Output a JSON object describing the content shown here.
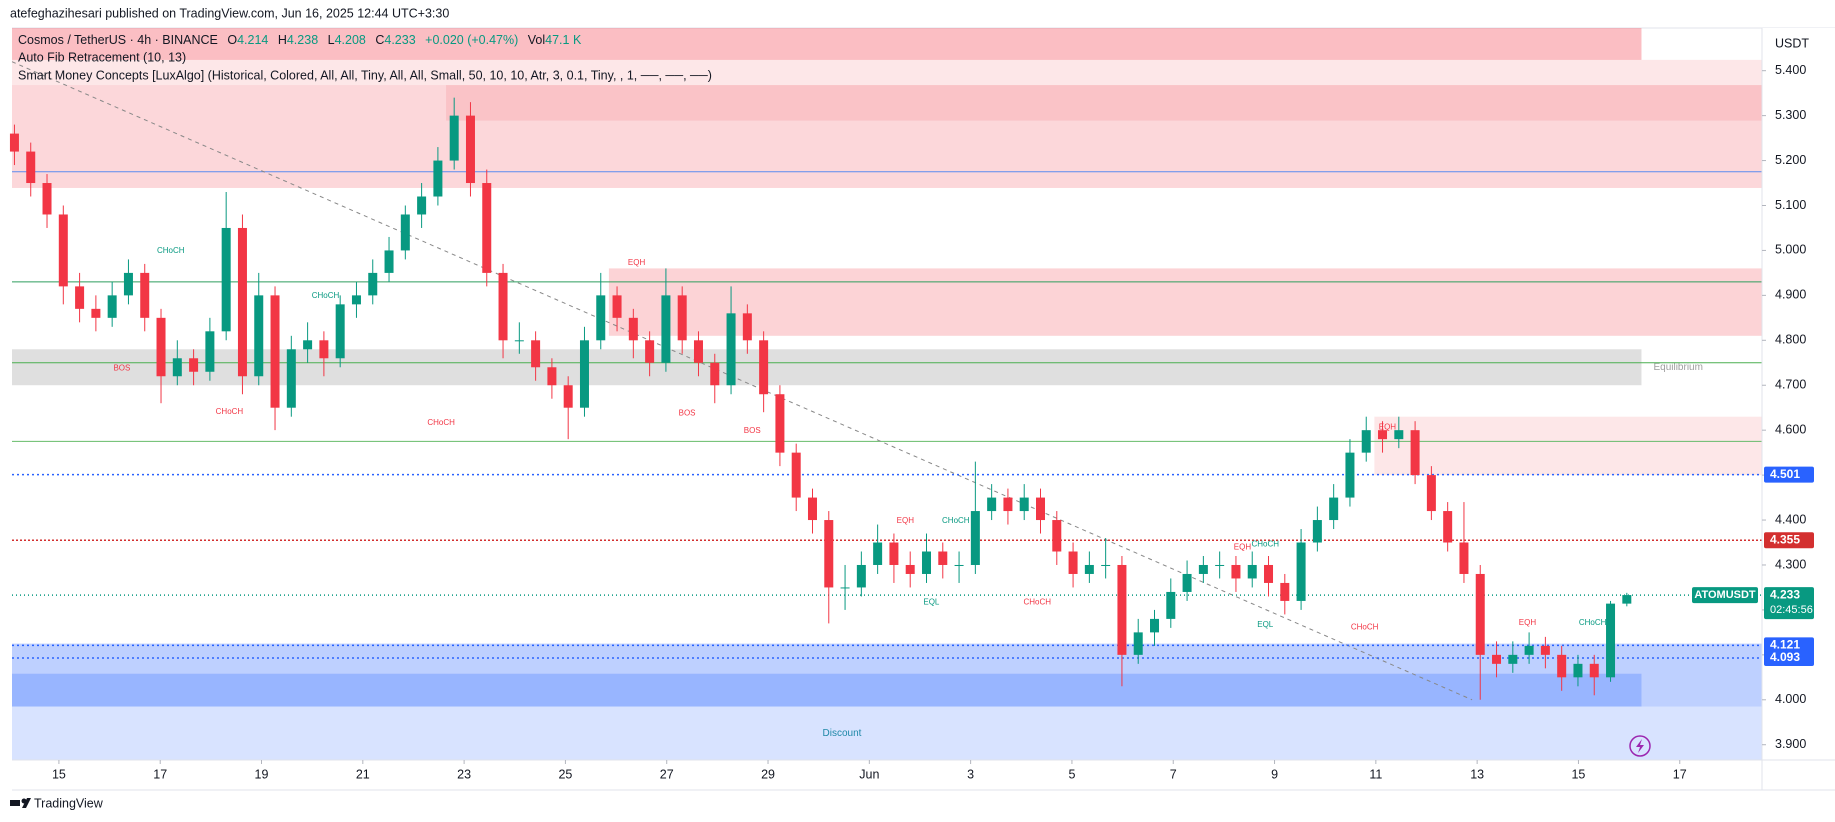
{
  "publisher": "atefeghazihesari published on TradingView.com, Jun 16, 2025 12:44 UTC+3:30",
  "brand": "TradingView",
  "chart_data": {
    "type": "candlestick",
    "title": "Cosmos / TetherUS · 4h · BINANCE",
    "legend_fields": [
      {
        "label": "O",
        "value": 4.214
      },
      {
        "label": "H",
        "value": 4.238
      },
      {
        "label": "L",
        "value": 4.208
      },
      {
        "label": "C",
        "value": 4.233
      }
    ],
    "change": "+0.020 (+0.47%)",
    "volume_label": "Vol",
    "volume": "47.1 K",
    "indicators": [
      "Auto Fib Retracement (10, 13)",
      "Smart Money Concepts [LuxAlgo] (Historical, Colored, All, All, Tiny, All, All, Small, 50, 10, 10, Atr, 3, 0.1, Tiny, , 1, ──, ──, ──)"
    ],
    "currency": "USDT",
    "up_color": "#089981",
    "down_color": "#f23645",
    "ylim": [
      3.866,
      5.495
    ],
    "yticks": [
      {
        "value": 5.4,
        "label": "5.400"
      },
      {
        "value": 5.3,
        "label": "5.300"
      },
      {
        "value": 5.2,
        "label": "5.200"
      },
      {
        "value": 5.1,
        "label": "5.100"
      },
      {
        "value": 5.0,
        "label": "5.000"
      },
      {
        "value": 4.9,
        "label": "4.900"
      },
      {
        "value": 4.8,
        "label": "4.800"
      },
      {
        "value": 4.7,
        "label": "4.700"
      },
      {
        "value": 4.6,
        "label": "4.600"
      },
      {
        "value": 4.5,
        "label": "4.500"
      },
      {
        "value": 4.4,
        "label": "4.400"
      },
      {
        "value": 4.3,
        "label": "4.300"
      },
      {
        "value": 4.2,
        "label": "4.200"
      },
      {
        "value": 4.1,
        "label": "4.100"
      },
      {
        "value": 4.0,
        "label": "4.000"
      },
      {
        "value": 3.9,
        "label": "3.900"
      }
    ],
    "xlim": [
      -0.15,
      107.3
    ],
    "xticks": [
      {
        "value": 2.73,
        "label": "15"
      },
      {
        "value": 8.95,
        "label": "17"
      },
      {
        "value": 15.17,
        "label": "19"
      },
      {
        "value": 21.39,
        "label": "21"
      },
      {
        "value": 27.61,
        "label": "23"
      },
      {
        "value": 33.83,
        "label": "25"
      },
      {
        "value": 40.05,
        "label": "27"
      },
      {
        "value": 46.27,
        "label": "29"
      },
      {
        "value": 52.49,
        "label": "Jun"
      },
      {
        "value": 58.71,
        "label": "3"
      },
      {
        "value": 64.93,
        "label": "5"
      },
      {
        "value": 71.15,
        "label": "7"
      },
      {
        "value": 77.37,
        "label": "9"
      },
      {
        "value": 83.59,
        "label": "11"
      },
      {
        "value": 89.81,
        "label": "13"
      },
      {
        "value": 96.03,
        "label": "15"
      },
      {
        "value": 102.25,
        "label": "17"
      }
    ],
    "grid": false,
    "ohlc": [
      [
        5.26,
        5.28,
        5.19,
        5.22
      ],
      [
        5.22,
        5.24,
        5.12,
        5.15
      ],
      [
        5.15,
        5.17,
        5.05,
        5.08
      ],
      [
        5.08,
        5.1,
        4.88,
        4.92
      ],
      [
        4.92,
        4.95,
        4.84,
        4.87
      ],
      [
        4.87,
        4.9,
        4.82,
        4.85
      ],
      [
        4.85,
        4.93,
        4.83,
        4.9
      ],
      [
        4.9,
        4.98,
        4.88,
        4.95
      ],
      [
        4.95,
        4.97,
        4.82,
        4.85
      ],
      [
        4.85,
        4.87,
        4.66,
        4.72
      ],
      [
        4.72,
        4.8,
        4.7,
        4.76
      ],
      [
        4.76,
        4.78,
        4.7,
        4.73
      ],
      [
        4.73,
        4.85,
        4.71,
        4.82
      ],
      [
        4.82,
        5.13,
        4.8,
        5.05
      ],
      [
        5.05,
        5.08,
        4.68,
        4.72
      ],
      [
        4.72,
        4.95,
        4.7,
        4.9
      ],
      [
        4.9,
        4.92,
        4.6,
        4.65
      ],
      [
        4.65,
        4.81,
        4.63,
        4.78
      ],
      [
        4.78,
        4.84,
        4.75,
        4.8
      ],
      [
        4.8,
        4.82,
        4.72,
        4.76
      ],
      [
        4.76,
        4.9,
        4.74,
        4.88
      ],
      [
        4.88,
        4.93,
        4.85,
        4.9
      ],
      [
        4.9,
        4.98,
        4.88,
        4.95
      ],
      [
        4.95,
        5.03,
        4.93,
        5.0
      ],
      [
        5.0,
        5.1,
        4.98,
        5.08
      ],
      [
        5.08,
        5.15,
        5.05,
        5.12
      ],
      [
        5.12,
        5.23,
        5.1,
        5.2
      ],
      [
        5.2,
        5.34,
        5.18,
        5.3
      ],
      [
        5.3,
        5.33,
        5.12,
        5.15
      ],
      [
        5.15,
        5.18,
        4.92,
        4.95
      ],
      [
        4.95,
        4.97,
        4.76,
        4.8
      ],
      [
        4.8,
        4.84,
        4.77,
        4.8
      ],
      [
        4.8,
        4.82,
        4.71,
        4.74
      ],
      [
        4.74,
        4.76,
        4.67,
        4.7
      ],
      [
        4.7,
        4.72,
        4.58,
        4.65
      ],
      [
        4.65,
        4.83,
        4.63,
        4.8
      ],
      [
        4.8,
        4.95,
        4.78,
        4.9
      ],
      [
        4.9,
        4.92,
        4.82,
        4.85
      ],
      [
        4.85,
        4.87,
        4.76,
        4.8
      ],
      [
        4.8,
        4.82,
        4.72,
        4.75
      ],
      [
        4.75,
        4.96,
        4.73,
        4.9
      ],
      [
        4.9,
        4.92,
        4.77,
        4.8
      ],
      [
        4.8,
        4.82,
        4.72,
        4.75
      ],
      [
        4.75,
        4.77,
        4.66,
        4.7
      ],
      [
        4.7,
        4.92,
        4.68,
        4.86
      ],
      [
        4.86,
        4.88,
        4.77,
        4.8
      ],
      [
        4.8,
        4.82,
        4.64,
        4.68
      ],
      [
        4.68,
        4.7,
        4.52,
        4.55
      ],
      [
        4.55,
        4.57,
        4.42,
        4.45
      ],
      [
        4.45,
        4.47,
        4.37,
        4.4
      ],
      [
        4.4,
        4.42,
        4.17,
        4.25
      ],
      [
        4.25,
        4.3,
        4.2,
        4.25
      ],
      [
        4.25,
        4.33,
        4.23,
        4.3
      ],
      [
        4.3,
        4.39,
        4.28,
        4.35
      ],
      [
        4.35,
        4.37,
        4.26,
        4.3
      ],
      [
        4.3,
        4.33,
        4.25,
        4.28
      ],
      [
        4.28,
        4.37,
        4.26,
        4.33
      ],
      [
        4.33,
        4.35,
        4.27,
        4.3
      ],
      [
        4.3,
        4.33,
        4.26,
        4.3
      ],
      [
        4.3,
        4.53,
        4.28,
        4.42
      ],
      [
        4.42,
        4.48,
        4.4,
        4.45
      ],
      [
        4.45,
        4.47,
        4.39,
        4.42
      ],
      [
        4.42,
        4.48,
        4.4,
        4.45
      ],
      [
        4.45,
        4.47,
        4.37,
        4.4
      ],
      [
        4.4,
        4.42,
        4.3,
        4.33
      ],
      [
        4.33,
        4.35,
        4.25,
        4.28
      ],
      [
        4.28,
        4.33,
        4.26,
        4.3
      ],
      [
        4.3,
        4.36,
        4.27,
        4.3
      ],
      [
        4.3,
        4.32,
        4.03,
        4.1
      ],
      [
        4.1,
        4.18,
        4.08,
        4.15
      ],
      [
        4.15,
        4.2,
        4.12,
        4.18
      ],
      [
        4.18,
        4.27,
        4.16,
        4.24
      ],
      [
        4.24,
        4.31,
        4.22,
        4.28
      ],
      [
        4.28,
        4.32,
        4.26,
        4.3
      ],
      [
        4.3,
        4.33,
        4.27,
        4.3
      ],
      [
        4.3,
        4.32,
        4.24,
        4.27
      ],
      [
        4.27,
        4.33,
        4.25,
        4.3
      ],
      [
        4.3,
        4.32,
        4.23,
        4.26
      ],
      [
        4.26,
        4.28,
        4.19,
        4.22
      ],
      [
        4.22,
        4.38,
        4.2,
        4.35
      ],
      [
        4.35,
        4.43,
        4.33,
        4.4
      ],
      [
        4.4,
        4.48,
        4.38,
        4.45
      ],
      [
        4.45,
        4.58,
        4.43,
        4.55
      ],
      [
        4.55,
        4.63,
        4.53,
        4.6
      ],
      [
        4.6,
        4.62,
        4.55,
        4.58
      ],
      [
        4.58,
        4.63,
        4.56,
        4.6
      ],
      [
        4.6,
        4.62,
        4.48,
        4.5
      ],
      [
        4.5,
        4.52,
        4.4,
        4.42
      ],
      [
        4.42,
        4.44,
        4.33,
        4.35
      ],
      [
        4.35,
        4.44,
        4.26,
        4.28
      ],
      [
        4.28,
        4.3,
        4.0,
        4.1
      ],
      [
        4.1,
        4.13,
        4.05,
        4.08
      ],
      [
        4.08,
        4.13,
        4.06,
        4.1
      ],
      [
        4.1,
        4.15,
        4.08,
        4.12
      ],
      [
        4.12,
        4.14,
        4.07,
        4.1
      ],
      [
        4.1,
        4.12,
        4.02,
        4.05
      ],
      [
        4.05,
        4.1,
        4.03,
        4.08
      ],
      [
        4.08,
        4.1,
        4.01,
        4.05
      ],
      [
        4.05,
        4.22,
        4.04,
        4.214
      ],
      [
        4.214,
        4.238,
        4.208,
        4.233
      ]
    ],
    "zones": [
      {
        "top": 5.495,
        "bottom": 5.424,
        "start": -0.15,
        "end": 99.9,
        "color": "rgba(242,54,69,0.32)"
      },
      {
        "top": 5.424,
        "bottom": 5.368,
        "start": -0.15,
        "end": 107.3,
        "color": "rgba(242,54,69,0.12)"
      },
      {
        "top": 5.368,
        "bottom": 5.139,
        "start": -0.15,
        "end": 107.3,
        "color": "rgba(242,54,69,0.2)"
      },
      {
        "top": 5.368,
        "bottom": 5.289,
        "start": 26.5,
        "end": 107.3,
        "color": "rgba(242,54,69,0.12)"
      },
      {
        "top": 4.96,
        "bottom": 4.81,
        "start": 36.5,
        "end": 107.3,
        "color": "rgba(242,54,69,0.22)"
      },
      {
        "top": 4.78,
        "bottom": 4.7,
        "start": -0.15,
        "end": 99.9,
        "color": "rgba(150,150,150,0.3)",
        "label": "Equilibrium"
      },
      {
        "top": 4.63,
        "bottom": 4.5,
        "start": 83.5,
        "end": 107.3,
        "color": "rgba(242,54,69,0.12)"
      },
      {
        "top": 4.125,
        "bottom": 3.985,
        "start": -0.15,
        "end": 107.3,
        "color": "rgba(41,98,255,0.3)"
      },
      {
        "top": 4.058,
        "bottom": 3.985,
        "start": -0.15,
        "end": 99.9,
        "color": "rgba(41,98,255,0.25)"
      },
      {
        "top": 3.985,
        "bottom": 3.866,
        "start": -0.15,
        "end": 107.3,
        "color": "rgba(41,98,255,0.18)",
        "label": "Discount"
      }
    ],
    "lines": [
      {
        "from": [
          -0.15,
          5.175
        ],
        "to": [
          107.3,
          5.175
        ],
        "color": "#5b8cf0",
        "dash": ""
      },
      {
        "from": [
          -0.15,
          4.93
        ],
        "to": [
          107.3,
          4.93
        ],
        "color": "#2e9e5e",
        "dash": ""
      },
      {
        "from": [
          -0.15,
          4.75
        ],
        "to": [
          107.3,
          4.75
        ],
        "color": "#4caf50",
        "dash": ""
      },
      {
        "from": [
          -0.15,
          4.575
        ],
        "to": [
          107.3,
          4.575
        ],
        "color": "#66bb6a",
        "dash": ""
      },
      {
        "from": [
          -0.15,
          5.42
        ],
        "to": [
          89.5,
          4.0
        ],
        "color": "#888888",
        "dash": "4 4"
      }
    ],
    "annotations": [
      {
        "text": "CHoCH",
        "x": 9.6,
        "y": 5.012,
        "color": "#089981"
      },
      {
        "text": "BOS",
        "x": 6.6,
        "y": 4.751,
        "color": "#f23645"
      },
      {
        "text": "CHoCH",
        "x": 13.2,
        "y": 4.654,
        "color": "#f23645"
      },
      {
        "text": "CHoCH",
        "x": 19.1,
        "y": 4.912,
        "color": "#089981"
      },
      {
        "text": "CHoCH",
        "x": 26.2,
        "y": 4.63,
        "color": "#f23645"
      },
      {
        "text": "EQH",
        "x": 38.2,
        "y": 4.986,
        "color": "#f23645"
      },
      {
        "text": "BOS",
        "x": 41.3,
        "y": 4.651,
        "color": "#f23645"
      },
      {
        "text": "BOS",
        "x": 45.3,
        "y": 4.612,
        "color": "#f23645"
      },
      {
        "text": "EQH",
        "x": 54.7,
        "y": 4.411,
        "color": "#f23645"
      },
      {
        "text": "CHoCH",
        "x": 57.8,
        "y": 4.411,
        "color": "#089981"
      },
      {
        "text": "EQL",
        "x": 56.3,
        "y": 4.23,
        "color": "#089981"
      },
      {
        "text": "CHoCH",
        "x": 62.8,
        "y": 4.23,
        "color": "#f23645"
      },
      {
        "text": "EQH",
        "x": 75.4,
        "y": 4.353,
        "color": "#f23645"
      },
      {
        "text": "CHoCH",
        "x": 76.8,
        "y": 4.359,
        "color": "#089981"
      },
      {
        "text": "EQL",
        "x": 76.8,
        "y": 4.18,
        "color": "#089981"
      },
      {
        "text": "CHoCH",
        "x": 82.9,
        "y": 4.174,
        "color": "#f23645"
      },
      {
        "text": "EQH",
        "x": 84.3,
        "y": 4.62,
        "color": "#f23645"
      },
      {
        "text": "EQH",
        "x": 92.9,
        "y": 4.185,
        "color": "#f23645"
      },
      {
        "text": "CHoCH",
        "x": 96.9,
        "y": 4.185,
        "color": "#089981"
      }
    ],
    "price_lines": [
      {
        "value": 4.501,
        "color": "#2962ff",
        "dash": "2 3"
      },
      {
        "value": 4.355,
        "color": "#d32f2f",
        "dash": "2 2"
      },
      {
        "name": "ATOMUSDT",
        "value": 4.233,
        "countdown": "02:45:56",
        "color": "#089981",
        "dash": "1 3"
      },
      {
        "value": 4.121,
        "color": "#2962ff",
        "dash": "2 3"
      },
      {
        "value": 4.093,
        "color": "#2962ff",
        "dash": "2 3"
      }
    ]
  }
}
